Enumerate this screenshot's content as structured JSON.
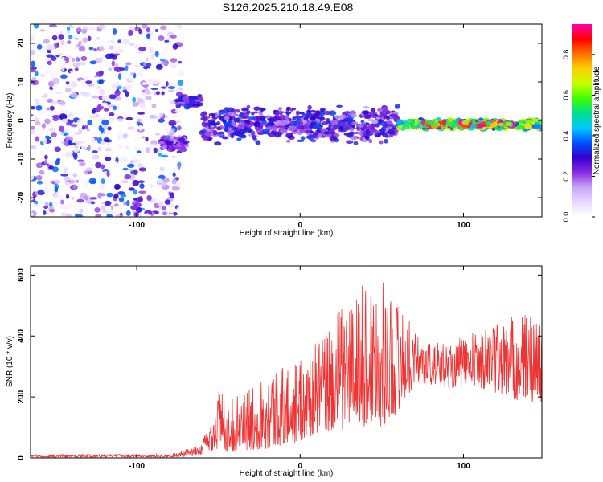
{
  "figure": {
    "title": "S126.2025.210.18.49.E08"
  },
  "chart_data": [
    {
      "type": "heatmap",
      "xlabel": "Height of straight line (km)",
      "ylabel": "Frequency (Hz)",
      "xlim": [
        -165,
        148
      ],
      "ylim": [
        -25,
        25
      ],
      "xticks": [
        -100,
        0,
        100
      ],
      "yticks": [
        -20,
        -10,
        0,
        10,
        20
      ],
      "colorbar": {
        "label": "Normalized spectral amplitude",
        "range": [
          0,
          0.95
        ],
        "ticks": [
          "0.0",
          "0.2",
          "0.4",
          "0.6",
          "0.8"
        ],
        "colormap": [
          "#ffffff",
          "#e8d8ff",
          "#c9a5f5",
          "#8a2be2",
          "#3300cc",
          "#0050ff",
          "#00c8ff",
          "#00e08a",
          "#40ff00",
          "#c8ff00",
          "#ffd000",
          "#ff7000",
          "#ff0000",
          "#ff00b0"
        ]
      },
      "regions": [
        {
          "x_range": [
            -165,
            -73
          ],
          "freq_range": [
            -25,
            25
          ],
          "description": "broadband noise",
          "level": 0.15
        },
        {
          "x_range": [
            -75,
            -60
          ],
          "freq_center": 5,
          "level": 0.3
        },
        {
          "x_range": [
            -85,
            -70
          ],
          "freq_center": -6,
          "level": 0.25
        },
        {
          "x_range": [
            -60,
            60
          ],
          "freq_center": -1,
          "freq_spread": 5,
          "level": 0.3
        },
        {
          "x_range": [
            60,
            148
          ],
          "freq_center": -1,
          "freq_spread": 1.5,
          "level": 0.6
        },
        {
          "x_range": [
            75,
            130
          ],
          "freq_center": -1,
          "freq_spread": 0.7,
          "level": 0.9
        }
      ]
    },
    {
      "type": "line",
      "xlabel": "Height of straight line (km)",
      "ylabel": "SNR (10 * v/v)",
      "xlim": [
        -165,
        148
      ],
      "ylim": [
        0,
        630
      ],
      "xticks": [
        -100,
        0,
        100
      ],
      "yticks": [
        0,
        200,
        400,
        600
      ],
      "series": [
        {
          "color": "#ee3333",
          "envelope": {
            "x": [
              -165,
              -80,
              -62,
              -55,
              -50,
              -45,
              -40,
              -30,
              -20,
              -10,
              0,
              10,
              20,
              30,
              40,
              45,
              50,
              60,
              70,
              80,
              90,
              100,
              110,
              120,
              130,
              140,
              148
            ],
            "y_low": [
              2,
              2,
              5,
              20,
              20,
              20,
              20,
              25,
              30,
              40,
              50,
              80,
              80,
              100,
              100,
              110,
              100,
              150,
              240,
              240,
              230,
              230,
              230,
              210,
              190,
              180,
              180
            ],
            "y_high": [
              12,
              12,
              40,
              120,
              250,
              180,
              200,
              230,
              300,
              300,
              320,
              380,
              460,
              530,
              580,
              600,
              580,
              520,
              420,
              380,
              380,
              400,
              420,
              450,
              470,
              480,
              480
            ]
          }
        }
      ]
    }
  ]
}
